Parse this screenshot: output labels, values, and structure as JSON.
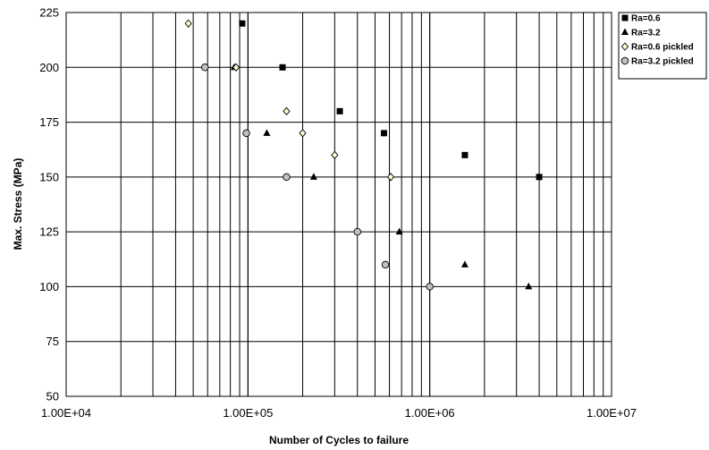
{
  "chart_data": {
    "type": "scatter",
    "title": "",
    "xlabel": "Number of Cycles to failure",
    "ylabel": "Max. Stress (MPa)",
    "xscale": "log",
    "xlim": [
      10000,
      10000000
    ],
    "ylim": [
      50,
      225
    ],
    "x_tick_labels": [
      "1.00E+04",
      "1.00E+05",
      "1.00E+06",
      "1.00E+07"
    ],
    "y_tick_labels": [
      "50",
      "75",
      "100",
      "125",
      "150",
      "175",
      "200",
      "225"
    ],
    "grid": true,
    "legend_position": "top-right",
    "series": [
      {
        "name": "Ra=0.6",
        "marker": "filled-square",
        "color": "#000000",
        "points": [
          [
            93000,
            220
          ],
          [
            155000,
            200
          ],
          [
            320000,
            180
          ],
          [
            560000,
            170
          ],
          [
            1560000,
            160
          ],
          [
            4000000,
            150
          ]
        ]
      },
      {
        "name": "Ra=3.2",
        "marker": "filled-triangle",
        "color": "#000000",
        "points": [
          [
            84000,
            200
          ],
          [
            127000,
            170
          ],
          [
            230000,
            150
          ],
          [
            680000,
            125
          ],
          [
            1560000,
            110
          ],
          [
            3500000,
            100
          ]
        ]
      },
      {
        "name": "Ra=0.6 pickled",
        "marker": "hollow-diamond",
        "color": "#ffffcc",
        "points": [
          [
            47000,
            220
          ],
          [
            86000,
            200
          ],
          [
            163000,
            180
          ],
          [
            200000,
            170
          ],
          [
            300000,
            160
          ],
          [
            610000,
            150
          ]
        ]
      },
      {
        "name": "Ra=3.2 pickled",
        "marker": "gray-circle",
        "color": "#c0c0c0",
        "points": [
          [
            58000,
            200
          ],
          [
            98000,
            170
          ],
          [
            163000,
            150
          ],
          [
            400000,
            125
          ],
          [
            570000,
            110
          ],
          [
            1000000,
            100
          ]
        ]
      }
    ]
  }
}
